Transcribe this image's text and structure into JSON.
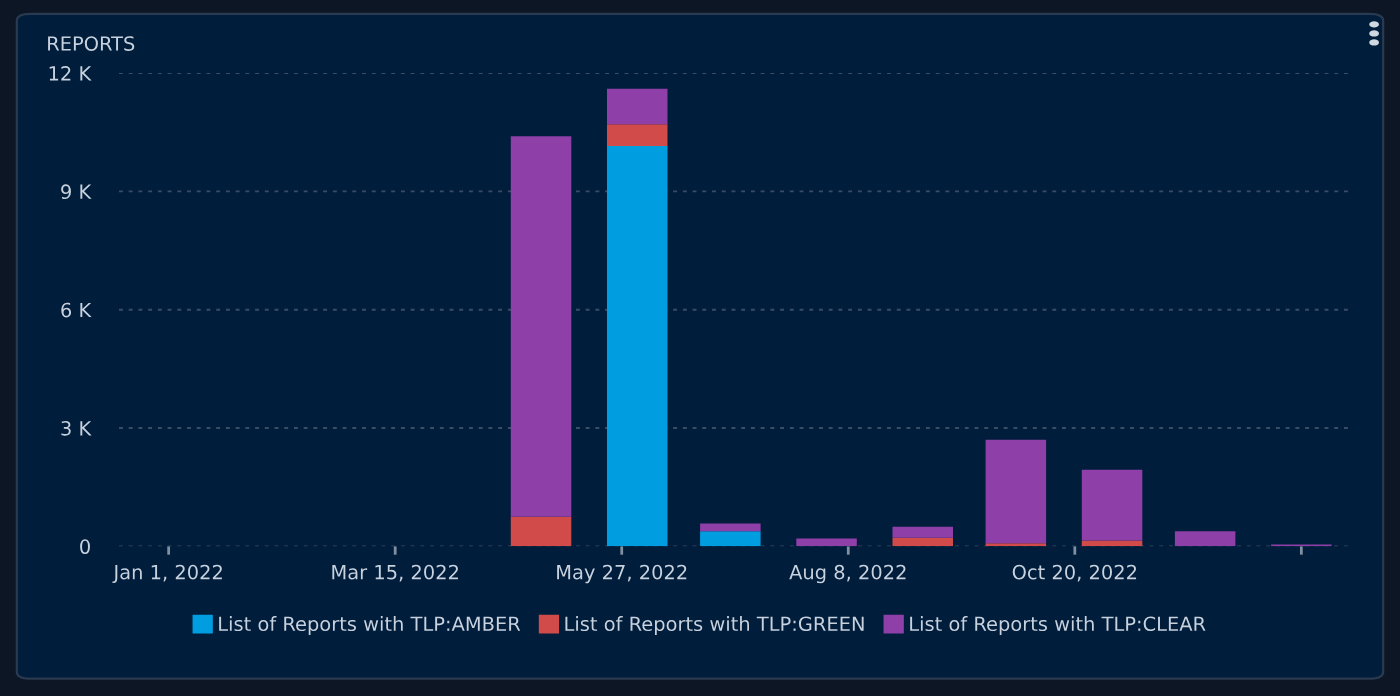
{
  "chart_data": {
    "type": "bar",
    "title": "REPORTS",
    "stacked": true,
    "x": [
      "2022-05-01",
      "2022-06-01",
      "2022-07-01",
      "2022-08-01",
      "2022-09-01",
      "2022-10-01",
      "2022-11-01",
      "2022-12-01",
      "2023-01-01"
    ],
    "series": [
      {
        "name": "List of Reports with TLP:AMBER",
        "color": "#009de0",
        "values": [
          0,
          10150,
          380,
          0,
          0,
          0,
          0,
          0,
          0
        ]
      },
      {
        "name": "List of Reports with TLP:GREEN",
        "color": "#d14b4b",
        "values": [
          750,
          550,
          0,
          0,
          220,
          80,
          150,
          0,
          0
        ]
      },
      {
        "name": "List of Reports with TLP:CLEAR",
        "color": "#8e3fa8",
        "values": [
          9650,
          900,
          200,
          200,
          280,
          2620,
          1790,
          380,
          50
        ]
      }
    ],
    "xlim": [
      "2021-12-16",
      "2023-01-17"
    ],
    "xticks": [
      {
        "value": "2022-01-01",
        "label": "Jan 1, 2022"
      },
      {
        "value": "2022-03-15",
        "label": "Mar 15, 2022"
      },
      {
        "value": "2022-05-27",
        "label": "May 27, 2022"
      },
      {
        "value": "2022-08-08",
        "label": "Aug 8, 2022"
      },
      {
        "value": "2022-10-20",
        "label": "Oct 20, 2022"
      },
      {
        "value": "2023-01-01",
        "label": null
      }
    ],
    "ylim": [
      0,
      12000
    ],
    "yticks": [
      {
        "value": 0,
        "label": "0"
      },
      {
        "value": 3000,
        "label": "3 K"
      },
      {
        "value": 6000,
        "label": "6 K"
      },
      {
        "value": 9000,
        "label": "9 K"
      },
      {
        "value": 12000,
        "label": "12 K"
      }
    ],
    "grid": "y",
    "legend": "bottom"
  }
}
